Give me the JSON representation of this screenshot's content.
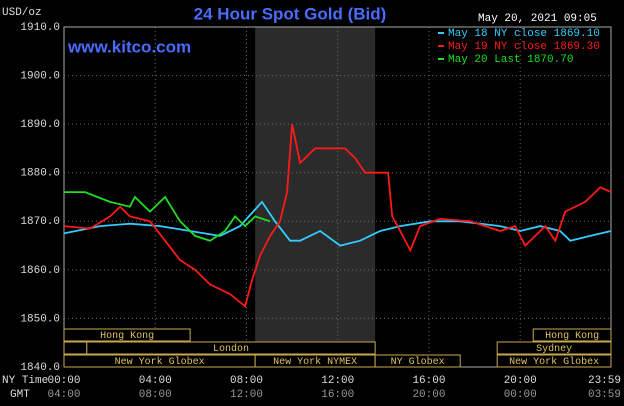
{
  "chart_data": {
    "type": "line",
    "title": "24 Hour Spot Gold (Bid)",
    "y_label": "USD/oz",
    "timestamp": "May 20, 2021 09:05",
    "website": "www.kitco.com",
    "x_row_label": "NY Time",
    "x2_row_label": "GMT",
    "xlim": [
      0,
      23.98
    ],
    "ylim": [
      1840,
      1910
    ],
    "yticks": [
      {
        "value": 1840,
        "label": "1840.0"
      },
      {
        "value": 1850,
        "label": "1850.0"
      },
      {
        "value": 1860,
        "label": "1860.0"
      },
      {
        "value": 1870,
        "label": "1870.0"
      },
      {
        "value": 1880,
        "label": "1880.0"
      },
      {
        "value": 1890,
        "label": "1890.0"
      },
      {
        "value": 1900,
        "label": "1900.0"
      },
      {
        "value": 1910,
        "label": "1910.0"
      }
    ],
    "xticks": [
      {
        "value": 0,
        "label": "00:00"
      },
      {
        "value": 4,
        "label": "04:00"
      },
      {
        "value": 8,
        "label": "08:00"
      },
      {
        "value": 12,
        "label": "12:00"
      },
      {
        "value": 16,
        "label": "16:00"
      },
      {
        "value": 20,
        "label": "20:00"
      },
      {
        "value": 23.98,
        "label": "23:59"
      }
    ],
    "x2ticks": [
      {
        "value": 0,
        "label": "04:00"
      },
      {
        "value": 4,
        "label": "08:00"
      },
      {
        "value": 8,
        "label": "12:00"
      },
      {
        "value": 12,
        "label": "16:00"
      },
      {
        "value": 16,
        "label": "20:00"
      },
      {
        "value": 20,
        "label": "00:00"
      },
      {
        "value": 23.98,
        "label": "03:59"
      }
    ],
    "grid": true,
    "sessions": [
      {
        "label": "Hong Kong",
        "row": 0,
        "start": 0,
        "end": 5.53
      },
      {
        "label": "Hong Kong",
        "row": 0,
        "start": 20.57,
        "end": 23.98
      },
      {
        "row": 1,
        "start": 0,
        "end": 1.0
      },
      {
        "label": "London",
        "row": 1,
        "start": 1.0,
        "end": 13.64
      },
      {
        "label": "Sydney",
        "row": 1,
        "start": 18.99,
        "end": 23.98
      },
      {
        "label": "New York Globex",
        "row": 2,
        "start": 0,
        "end": 8.38
      },
      {
        "label": "New York NYMEX",
        "row": 2,
        "start": 8.38,
        "end": 13.64,
        "highlight": true
      },
      {
        "label": "NY Globex",
        "row": 2,
        "start": 13.64,
        "end": 17.37
      },
      {
        "label": "New York Globex",
        "row": 2,
        "start": 18.99,
        "end": 23.98
      }
    ],
    "series": [
      {
        "name": "May 18 NY close 1869.10",
        "color": "#33ccff",
        "x": [
          0,
          1.58,
          2.89,
          4.21,
          5.53,
          6.84,
          7.72,
          8.68,
          9.25,
          9.91,
          10.35,
          11.23,
          12.11,
          12.98,
          13.86,
          14.74,
          16.05,
          17.37,
          19.12,
          20.0,
          20.88,
          21.75,
          22.19,
          23.07,
          23.98
        ],
        "values": [
          1867.5,
          1869,
          1869.5,
          1869,
          1868,
          1867,
          1869,
          1874,
          1870,
          1866,
          1866,
          1868,
          1865,
          1866,
          1868,
          1869,
          1870,
          1870,
          1869,
          1868,
          1869,
          1868,
          1866,
          1867,
          1868
        ]
      },
      {
        "name": "May 19 NY close 1869.30",
        "color": "#ff1a1a",
        "x": [
          0,
          1.14,
          2.02,
          2.46,
          2.89,
          3.77,
          4.43,
          5.09,
          5.75,
          6.4,
          7.28,
          7.94,
          8.25,
          8.6,
          9.04,
          9.47,
          9.78,
          10.0,
          10.35,
          11.01,
          12.32,
          12.76,
          13.2,
          14.21,
          14.39,
          14.74,
          15.18,
          15.61,
          16.49,
          17.81,
          19.12,
          19.78,
          20.22,
          21.1,
          21.54,
          21.97,
          22.85,
          23.51,
          23.98
        ],
        "values": [
          1869,
          1868.5,
          1871,
          1873,
          1871,
          1870,
          1866,
          1862,
          1860,
          1857,
          1855,
          1852.5,
          1858,
          1863,
          1867,
          1870,
          1876,
          1890,
          1882,
          1885,
          1885,
          1883,
          1880,
          1880,
          1871,
          1868,
          1864,
          1869,
          1870.5,
          1870,
          1868,
          1869,
          1865,
          1869,
          1866,
          1872,
          1874,
          1877,
          1876
        ]
      },
      {
        "name": "May 20 Last 1870.70",
        "color": "#22dd22",
        "x": [
          0,
          0.92,
          2.02,
          2.89,
          3.11,
          3.77,
          4.43,
          5.09,
          5.75,
          6.4,
          7.06,
          7.5,
          7.94,
          8.38,
          9.04
        ],
        "values": [
          1876,
          1876,
          1874,
          1873,
          1875,
          1872,
          1875,
          1870,
          1867,
          1866,
          1868,
          1871,
          1869,
          1871,
          1870
        ]
      }
    ]
  }
}
